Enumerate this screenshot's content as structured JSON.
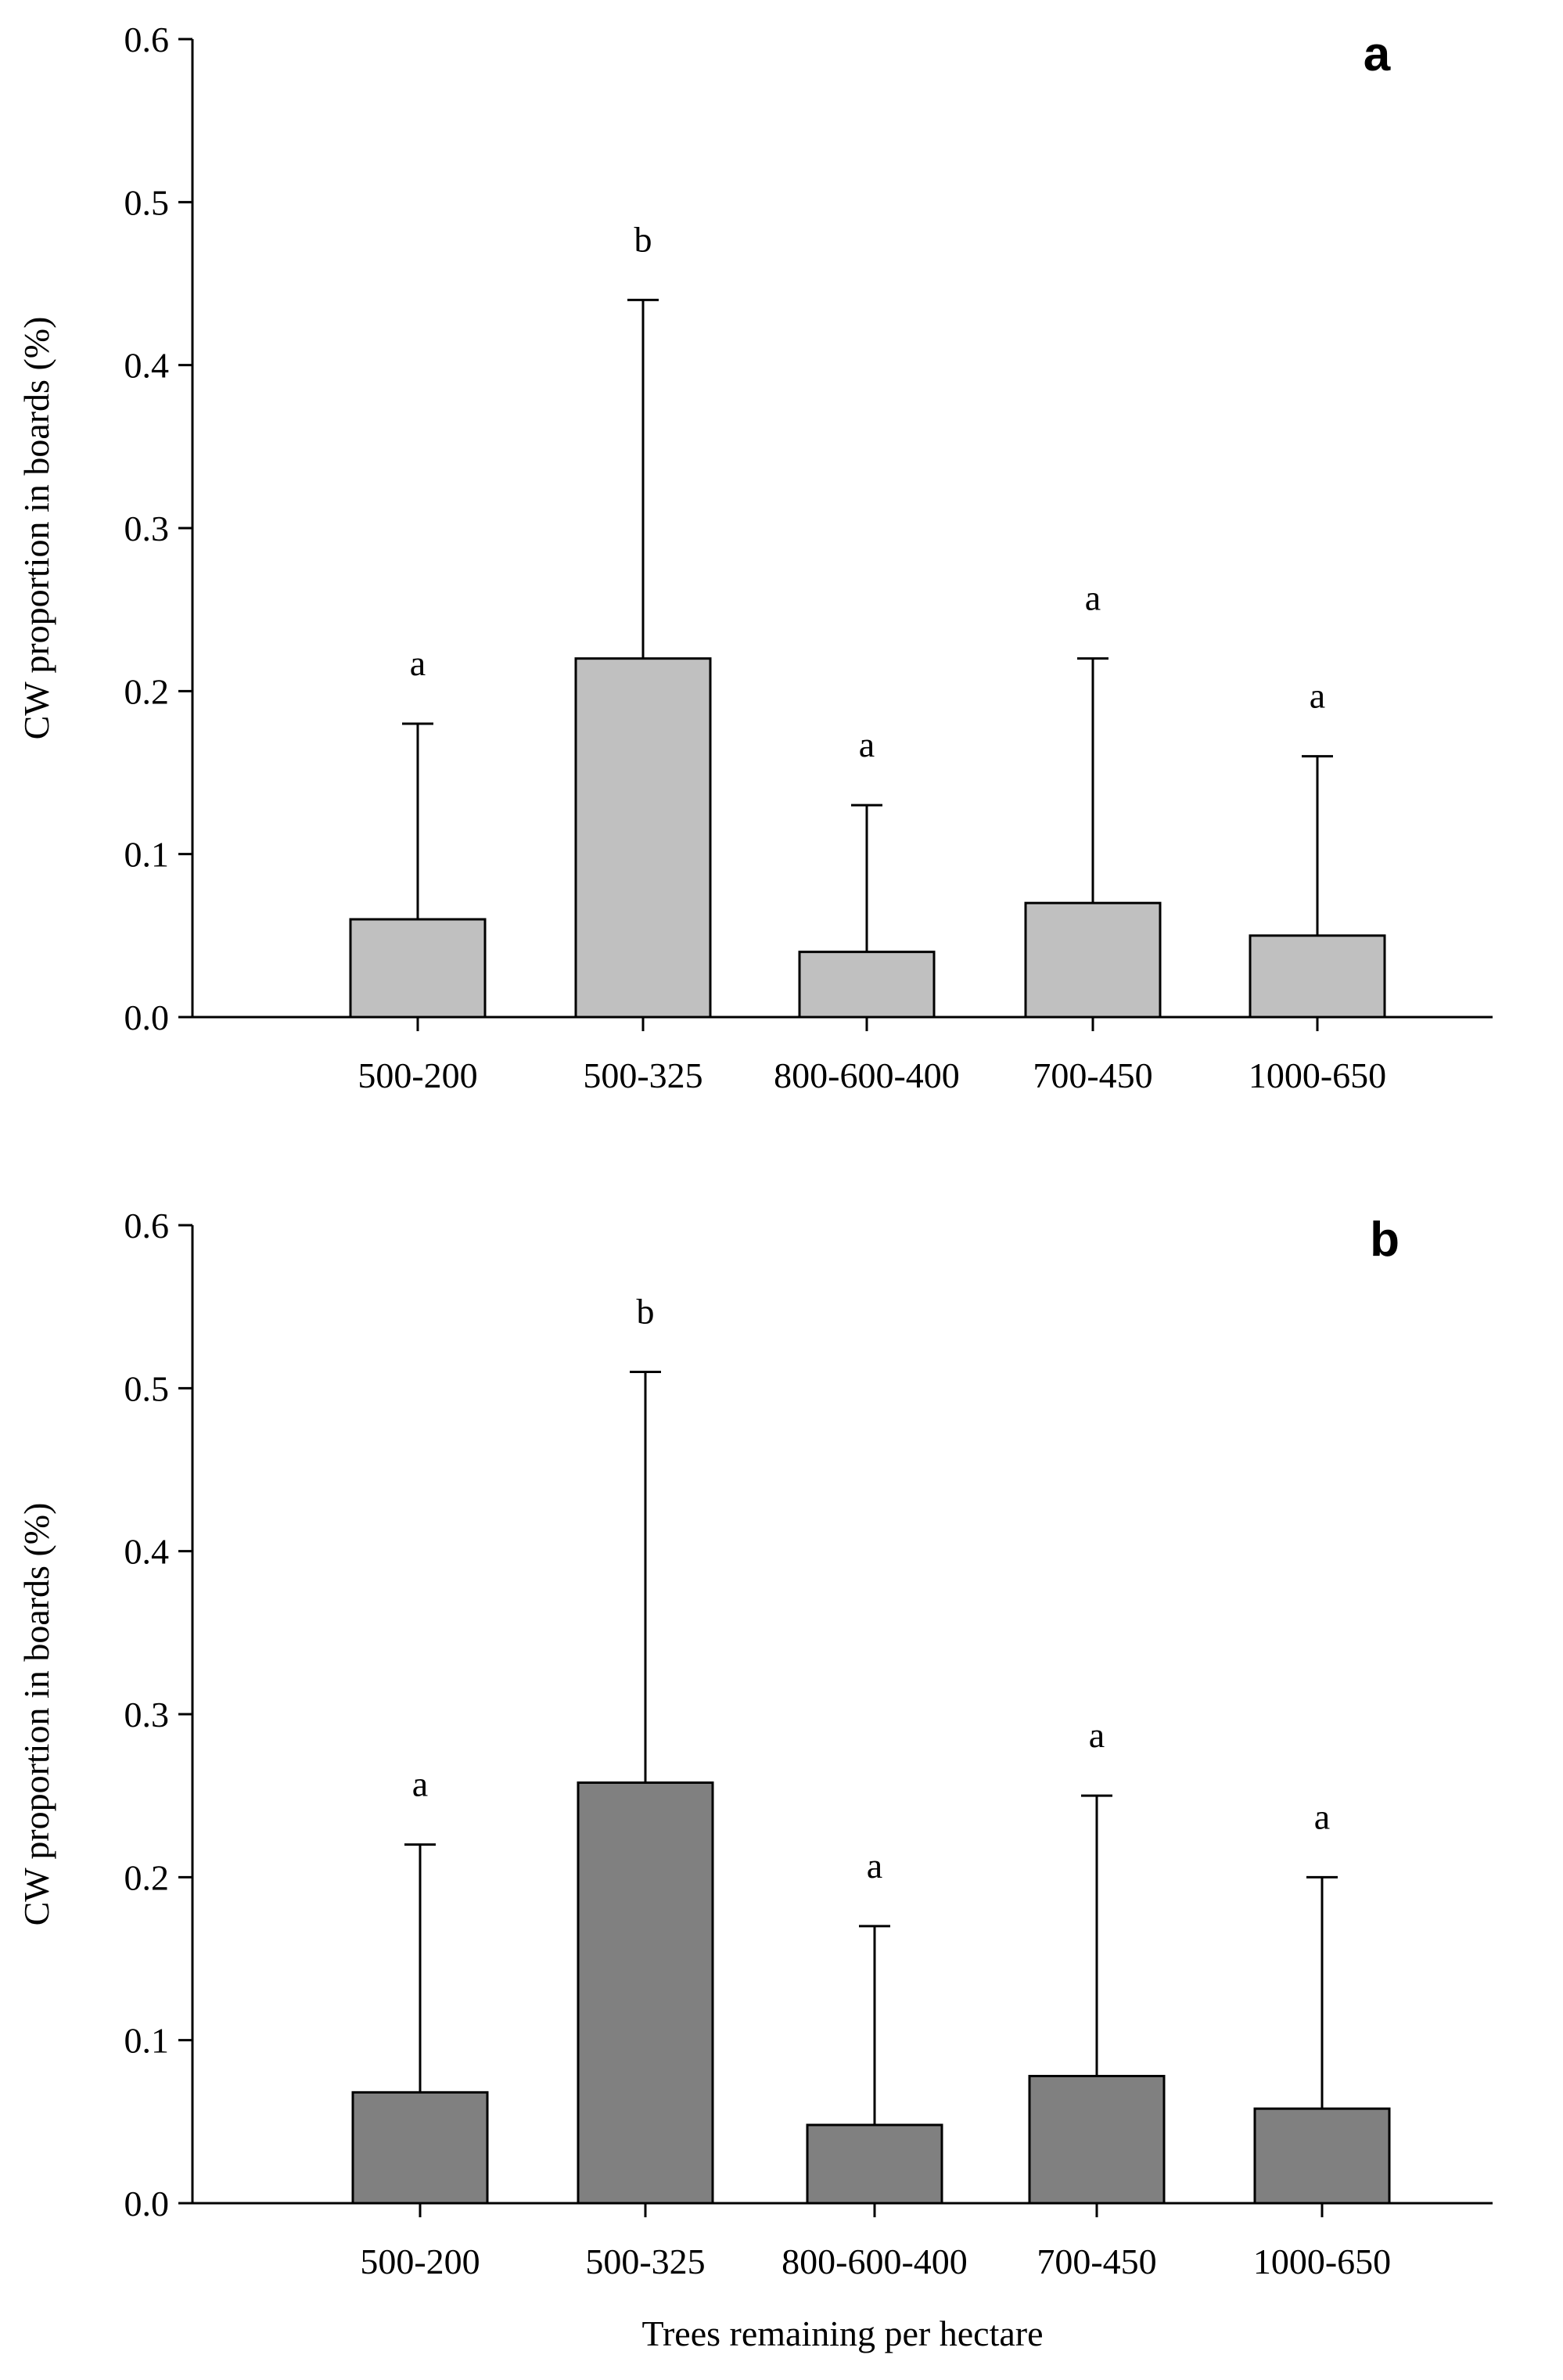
{
  "chart_data": [
    {
      "type": "bar",
      "panel_label": "a",
      "title": "",
      "ylabel": "CW proportion in boards (%)",
      "xlabel": "",
      "ylim": [
        0,
        0.6
      ],
      "yticks": [
        0.0,
        0.1,
        0.2,
        0.3,
        0.4,
        0.5,
        0.6
      ],
      "ytick_labels": [
        "0.0",
        "0.1",
        "0.2",
        "0.3",
        "0.4",
        "0.5",
        "0.6"
      ],
      "bar_color": "#c0c0c0",
      "categories": [
        "500-200",
        "500-325",
        "800-600-400",
        "700-450",
        "1000-650"
      ],
      "values": [
        0.06,
        0.22,
        0.04,
        0.07,
        0.05
      ],
      "error_upper": [
        0.18,
        0.44,
        0.13,
        0.22,
        0.16
      ],
      "letters": [
        "a",
        "b",
        "a",
        "a",
        "a"
      ],
      "grid": false
    },
    {
      "type": "bar",
      "panel_label": "b",
      "title": "",
      "ylabel": "CW proportion in boards (%)",
      "xlabel": "Trees remaining per hectare",
      "ylim": [
        0,
        0.6
      ],
      "yticks": [
        0.0,
        0.1,
        0.2,
        0.3,
        0.4,
        0.5,
        0.6
      ],
      "ytick_labels": [
        "0.0",
        "0.1",
        "0.2",
        "0.3",
        "0.4",
        "0.5",
        "0.6"
      ],
      "bar_color": "#808080",
      "categories": [
        "500-200",
        "500-325",
        "800-600-400",
        "700-450",
        "1000-650"
      ],
      "values": [
        0.068,
        0.258,
        0.048,
        0.078,
        0.058
      ],
      "error_upper": [
        0.22,
        0.51,
        0.17,
        0.25,
        0.2
      ],
      "letters": [
        "a",
        "b",
        "a",
        "a",
        "a"
      ],
      "grid": false
    }
  ]
}
